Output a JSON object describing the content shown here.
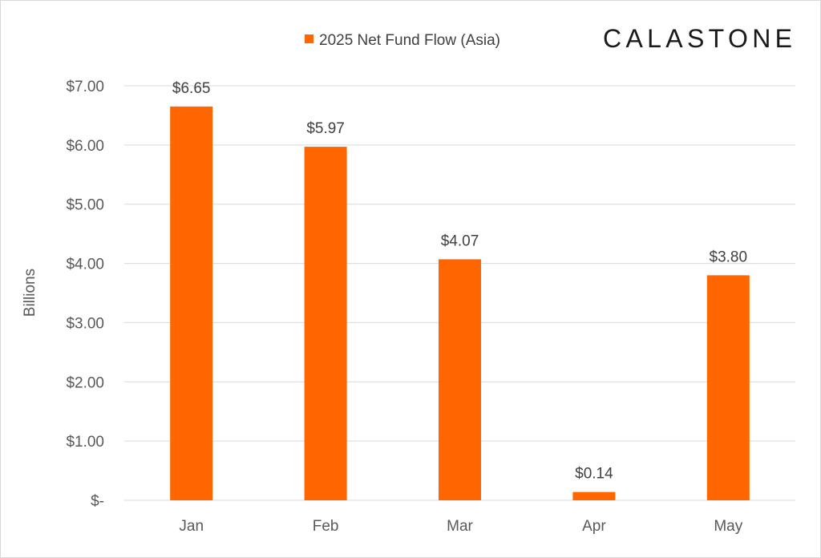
{
  "logo": {
    "text": "CALASTONE"
  },
  "chart_data": {
    "type": "bar",
    "categories": [
      "Jan",
      "Feb",
      "Mar",
      "Apr",
      "May"
    ],
    "series": [
      {
        "name": "2025 Net Fund Flow (Asia)",
        "color": "#FF6600",
        "values": [
          6.65,
          5.97,
          4.07,
          0.14,
          3.8
        ]
      }
    ],
    "data_labels": [
      "$6.65",
      "$5.97",
      "$4.07",
      "$0.14",
      "$3.80"
    ],
    "ylabel": "Billions",
    "ylim": [
      0,
      7
    ],
    "yticks": [
      0,
      1,
      2,
      3,
      4,
      5,
      6,
      7
    ],
    "ytick_labels": [
      "$-",
      "$1.00",
      "$2.00",
      "$3.00",
      "$4.00",
      "$5.00",
      "$6.00",
      "$7.00"
    ],
    "grid": true,
    "legend_position": "top-center",
    "gridline_color": "#d9d9d9"
  }
}
